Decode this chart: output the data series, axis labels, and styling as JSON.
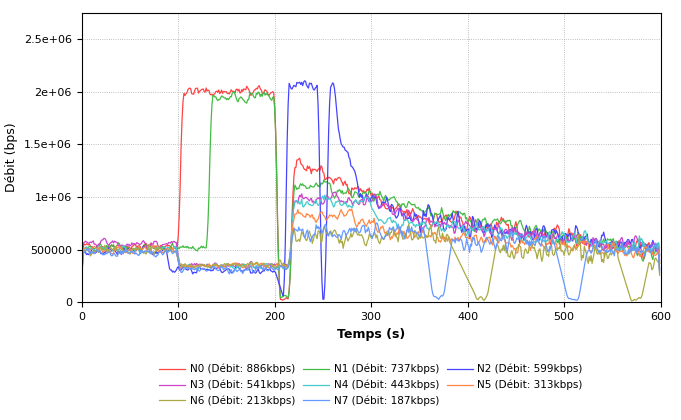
{
  "title": "",
  "xlabel": "Temps (s)",
  "ylabel": "Débit (bps)",
  "xlim": [
    0,
    600
  ],
  "ylim": [
    0,
    2750000
  ],
  "ytick_vals": [
    0,
    500000,
    1000000,
    1500000,
    2000000,
    2500000
  ],
  "ytick_labels": [
    "0",
    "500000",
    "1e+06",
    "1.5e+06",
    "2e+06",
    "2.5e+06"
  ],
  "xticks": [
    0,
    100,
    200,
    300,
    400,
    500,
    600
  ],
  "grid_color": "#aaaaaa",
  "background_color": "#ffffff",
  "series": [
    {
      "name": "N0 (Débit: 886kbps)",
      "color": "#ff4444"
    },
    {
      "name": "N1 (Débit: 737kbps)",
      "color": "#44bb44"
    },
    {
      "name": "N2 (Débit: 599kbps)",
      "color": "#4444ff"
    },
    {
      "name": "N3 (Débit: 541kbps)",
      "color": "#cc44cc"
    },
    {
      "name": "N4 (Débit: 443kbps)",
      "color": "#44cccc"
    },
    {
      "name": "N5 (Débit: 313kbps)",
      "color": "#ff8844"
    },
    {
      "name": "N6 (Débit: 213kbps)",
      "color": "#aaaa44"
    },
    {
      "name": "N7 (Débit: 187kbps)",
      "color": "#6699ff"
    }
  ],
  "legend_cols": 3,
  "legend_fontsize": 7.5,
  "tick_fontsize": 8,
  "label_fontsize": 9
}
